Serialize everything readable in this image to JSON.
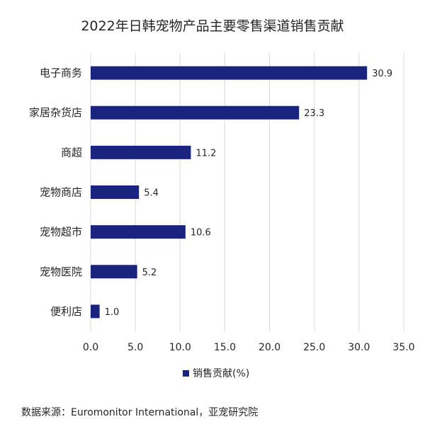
{
  "chart_data": {
    "type": "bar",
    "orientation": "horizontal",
    "title": "2022年日韩宠物产品主要零售渠道销售贡献",
    "categories": [
      "电子商务",
      "家居杂货店",
      "商超",
      "宠物商店",
      "宠物超市",
      "宠物医院",
      "便利店"
    ],
    "series": [
      {
        "name": "销售贡献(%)",
        "values": [
          30.9,
          23.3,
          11.2,
          5.4,
          10.6,
          5.2,
          1.0
        ]
      }
    ],
    "value_labels": [
      "30.9",
      "23.3",
      "11.2",
      "5.4",
      "10.6",
      "5.2",
      "1.0"
    ],
    "xlim": [
      0,
      35
    ],
    "xticks": [
      "0.0",
      "5.0",
      "10.0",
      "15.0",
      "20.0",
      "25.0",
      "30.0",
      "35.0"
    ],
    "grid": true,
    "legend_position": "bottom",
    "bar_color": "#1a237e"
  },
  "source": "数据来源：Euromonitor International，亚宠研究院"
}
